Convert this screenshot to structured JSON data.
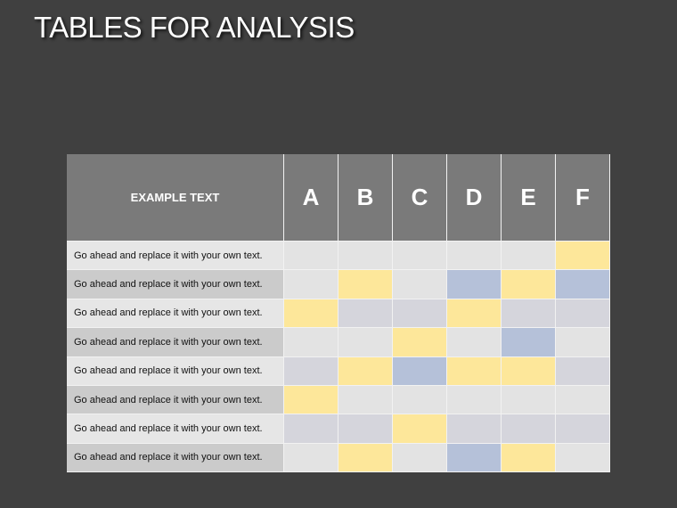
{
  "header": {
    "title": "TABLES FOR ANALYSIS"
  },
  "table": {
    "corner": "EXAMPLE TEXT",
    "columns": [
      "A",
      "B",
      "C",
      "D",
      "E",
      "F"
    ],
    "header_color": "#7a7a7a",
    "rows": [
      {
        "label": "Go ahead and replace it with your own text.",
        "label_color": "#e6e6e6",
        "colors": [
          "#e3e3e3",
          "#e3e3e3",
          "#e3e3e3",
          "#e3e3e3",
          "#e3e3e3",
          "#fde79a"
        ]
      },
      {
        "label": "Go ahead and replace it with your own text.",
        "label_color": "#cbcbcb",
        "colors": [
          "#e3e3e3",
          "#fde79a",
          "#e3e3e3",
          "#b5c1d9",
          "#fde79a",
          "#b5c1d9"
        ]
      },
      {
        "label": "Go ahead and replace it with your own text.",
        "label_color": "#e6e6e6",
        "colors": [
          "#fde79a",
          "#d5d5dc",
          "#d5d5dc",
          "#fde79a",
          "#d5d5dc",
          "#d5d5dc"
        ]
      },
      {
        "label": "Go ahead and replace it with your own text.",
        "label_color": "#cbcbcb",
        "colors": [
          "#e3e3e3",
          "#e3e3e3",
          "#fde79a",
          "#e3e3e3",
          "#b5c1d9",
          "#e3e3e3"
        ]
      },
      {
        "label": "Go ahead and replace it with your own text.",
        "label_color": "#e6e6e6",
        "colors": [
          "#d5d5dc",
          "#fde79a",
          "#b5c1d9",
          "#fde79a",
          "#fde79a",
          "#d5d5dc"
        ]
      },
      {
        "label": "Go ahead and replace it with your own text.",
        "label_color": "#cbcbcb",
        "colors": [
          "#fde79a",
          "#e3e3e3",
          "#e3e3e3",
          "#e3e3e3",
          "#e3e3e3",
          "#e3e3e3"
        ]
      },
      {
        "label": "Go ahead and replace it with your own text.",
        "label_color": "#e6e6e6",
        "colors": [
          "#d5d5dc",
          "#d5d5dc",
          "#fde79a",
          "#d5d5dc",
          "#d5d5dc",
          "#d5d5dc"
        ]
      },
      {
        "label": "Go ahead and replace it with your own text.",
        "label_color": "#cbcbcb",
        "colors": [
          "#e3e3e3",
          "#fde79a",
          "#e3e3e3",
          "#b5c1d9",
          "#fde79a",
          "#e3e3e3"
        ]
      }
    ]
  }
}
